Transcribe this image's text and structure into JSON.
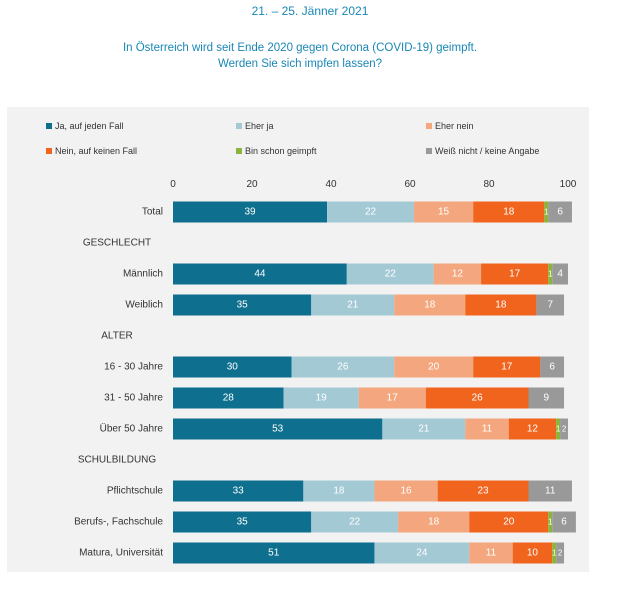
{
  "header": {
    "date": "21. – 25. Jänner 2021",
    "question_line1": "In Österreich wird seit Ende 2020 gegen Corona (COVID-19) geimpft.",
    "question_line2": "Werden Sie sich impfen lassen?"
  },
  "chart_data": {
    "type": "bar",
    "orientation": "horizontal",
    "stacked": true,
    "title": "Werden Sie sich impfen lassen?",
    "xlim": [
      0,
      100
    ],
    "xticks": [
      0,
      20,
      40,
      60,
      80,
      100
    ],
    "grid": false,
    "legend_position": "top",
    "series": [
      {
        "name": "Ja, auf jeden Fall",
        "color": "#0e6f8e"
      },
      {
        "name": "Eher ja",
        "color": "#a3c9d5"
      },
      {
        "name": "Eher nein",
        "color": "#f4a77e"
      },
      {
        "name": "Nein, auf keinen Fall",
        "color": "#f0641e"
      },
      {
        "name": "Bin schon geimpft",
        "color": "#8ab43c"
      },
      {
        "name": "Weiß nicht / keine Angabe",
        "color": "#999999"
      }
    ],
    "rows": [
      {
        "label": "Total",
        "values": [
          39,
          22,
          15,
          18,
          1,
          6
        ],
        "labels": [
          "39",
          "22",
          "15",
          "18",
          "1",
          "6"
        ]
      },
      {
        "label": "GESCHLECHT",
        "header": true
      },
      {
        "label": "Männlich",
        "values": [
          44,
          22,
          12,
          17,
          1,
          4
        ],
        "labels": [
          "44",
          "22",
          "12",
          "17",
          "1",
          "4"
        ]
      },
      {
        "label": "Weiblich",
        "values": [
          35,
          21,
          18,
          18,
          0,
          7
        ],
        "labels": [
          "35",
          "21",
          "18",
          "18",
          "",
          "7"
        ]
      },
      {
        "label": "ALTER",
        "header": true
      },
      {
        "label": "16 - 30 Jahre",
        "values": [
          30,
          26,
          20,
          17,
          0,
          6
        ],
        "labels": [
          "30",
          "26",
          "20",
          "17",
          "",
          "6"
        ]
      },
      {
        "label": "31 - 50 Jahre",
        "values": [
          28,
          19,
          17,
          26,
          0,
          9
        ],
        "labels": [
          "28",
          "19",
          "17",
          "26",
          "",
          "9"
        ]
      },
      {
        "label": "Über 50 Jahre",
        "values": [
          53,
          21,
          11,
          12,
          1,
          2
        ],
        "labels": [
          "53",
          "21",
          "11",
          "12",
          "1",
          "2"
        ]
      },
      {
        "label": "SCHULBILDUNG",
        "header": true
      },
      {
        "label": "Pflichtschule",
        "values": [
          33,
          18,
          16,
          23,
          0,
          11
        ],
        "labels": [
          "33",
          "18",
          "16",
          "23",
          "",
          "11"
        ]
      },
      {
        "label": "Berufs-, Fachschule",
        "values": [
          35,
          22,
          18,
          20,
          1,
          6
        ],
        "labels": [
          "35",
          "22",
          "18",
          "20",
          "1",
          "6"
        ]
      },
      {
        "label": "Matura, Universität",
        "values": [
          51,
          24,
          11,
          10,
          1,
          2
        ],
        "labels": [
          "51",
          "24",
          "11",
          "10",
          "1",
          "2"
        ]
      }
    ]
  }
}
